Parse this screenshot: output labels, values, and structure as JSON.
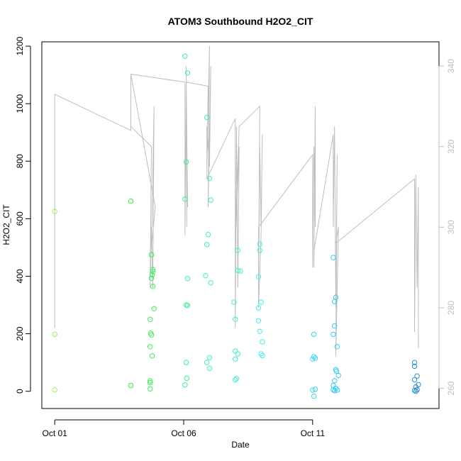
{
  "chart_data": {
    "type": "scatter",
    "title": "ATOM3 Southbound H2O2_CIT",
    "xlabel": "Date",
    "ylabel": "H2O2_CIT",
    "x_tick_labels": [
      "Oct 01",
      "Oct 06",
      "Oct 11"
    ],
    "x_tick_days": [
      1,
      6,
      11
    ],
    "xlim_days": [
      0.5,
      15.9
    ],
    "ylim": [
      -60,
      1215
    ],
    "y_ticks": [
      0,
      200,
      400,
      600,
      800,
      1000,
      1200
    ],
    "y2lim": [
      255,
      346
    ],
    "y2_ticks": [
      260,
      280,
      300,
      320,
      340
    ],
    "colors": {
      "line": "#bebebe",
      "axis_right": "#bebebe",
      "gradient": [
        "#9cf54a",
        "#32f02c",
        "#3ef0b0",
        "#3ff0f0",
        "#35c4f0",
        "#2a8ad6"
      ]
    },
    "points": [
      {
        "x": 1.0,
        "y": 625
      },
      {
        "x": 1.0,
        "y": 198
      },
      {
        "x": 1.0,
        "y": 5
      },
      {
        "x": 3.95,
        "y": 661
      },
      {
        "x": 3.95,
        "y": 20
      },
      {
        "x": 4.75,
        "y": 475
      },
      {
        "x": 4.8,
        "y": 423
      },
      {
        "x": 4.8,
        "y": 416
      },
      {
        "x": 4.78,
        "y": 405
      },
      {
        "x": 4.75,
        "y": 393
      },
      {
        "x": 4.8,
        "y": 365
      },
      {
        "x": 4.85,
        "y": 287
      },
      {
        "x": 4.7,
        "y": 250
      },
      {
        "x": 4.72,
        "y": 202
      },
      {
        "x": 4.75,
        "y": 196
      },
      {
        "x": 4.7,
        "y": 155
      },
      {
        "x": 4.78,
        "y": 123
      },
      {
        "x": 4.7,
        "y": 36
      },
      {
        "x": 4.7,
        "y": 30
      },
      {
        "x": 4.7,
        "y": 8
      },
      {
        "x": 6.05,
        "y": 1165
      },
      {
        "x": 6.15,
        "y": 1107
      },
      {
        "x": 6.1,
        "y": 797
      },
      {
        "x": 6.05,
        "y": 668
      },
      {
        "x": 6.15,
        "y": 392
      },
      {
        "x": 6.1,
        "y": 300
      },
      {
        "x": 6.15,
        "y": 298
      },
      {
        "x": 6.1,
        "y": 100
      },
      {
        "x": 6.12,
        "y": 45
      },
      {
        "x": 6.05,
        "y": 22
      },
      {
        "x": 6.9,
        "y": 952
      },
      {
        "x": 7.0,
        "y": 740
      },
      {
        "x": 7.05,
        "y": 665
      },
      {
        "x": 6.95,
        "y": 545
      },
      {
        "x": 6.9,
        "y": 510
      },
      {
        "x": 6.85,
        "y": 402
      },
      {
        "x": 7.05,
        "y": 377
      },
      {
        "x": 7.0,
        "y": 117
      },
      {
        "x": 6.9,
        "y": 100
      },
      {
        "x": 7.0,
        "y": 80
      },
      {
        "x": 8.1,
        "y": 490
      },
      {
        "x": 8.1,
        "y": 420
      },
      {
        "x": 8.2,
        "y": 418
      },
      {
        "x": 7.95,
        "y": 310
      },
      {
        "x": 8.0,
        "y": 250
      },
      {
        "x": 8.0,
        "y": 140
      },
      {
        "x": 8.1,
        "y": 130
      },
      {
        "x": 8.0,
        "y": 112
      },
      {
        "x": 8.05,
        "y": 44
      },
      {
        "x": 8.0,
        "y": 40
      },
      {
        "x": 8.95,
        "y": 512
      },
      {
        "x": 8.95,
        "y": 490
      },
      {
        "x": 8.9,
        "y": 398
      },
      {
        "x": 9.0,
        "y": 310
      },
      {
        "x": 8.9,
        "y": 290
      },
      {
        "x": 8.9,
        "y": 245
      },
      {
        "x": 8.95,
        "y": 208
      },
      {
        "x": 9.05,
        "y": 172
      },
      {
        "x": 9.0,
        "y": 130
      },
      {
        "x": 9.05,
        "y": 124
      },
      {
        "x": 11.05,
        "y": 198
      },
      {
        "x": 11.05,
        "y": 120
      },
      {
        "x": 11.1,
        "y": 115
      },
      {
        "x": 11.0,
        "y": 112
      },
      {
        "x": 11.1,
        "y": 7
      },
      {
        "x": 11.0,
        "y": 4
      },
      {
        "x": 11.05,
        "y": -17
      },
      {
        "x": 11.8,
        "y": 465
      },
      {
        "x": 11.9,
        "y": 327
      },
      {
        "x": 11.85,
        "y": 312
      },
      {
        "x": 11.85,
        "y": 227
      },
      {
        "x": 11.8,
        "y": 198
      },
      {
        "x": 11.95,
        "y": 155
      },
      {
        "x": 11.9,
        "y": 75
      },
      {
        "x": 11.92,
        "y": 70
      },
      {
        "x": 12.0,
        "y": 55
      },
      {
        "x": 11.85,
        "y": 37
      },
      {
        "x": 11.8,
        "y": 20
      },
      {
        "x": 11.9,
        "y": 10
      },
      {
        "x": 11.8,
        "y": 5
      },
      {
        "x": 11.95,
        "y": 4
      },
      {
        "x": 11.85,
        "y": 2
      },
      {
        "x": 14.95,
        "y": 100
      },
      {
        "x": 14.95,
        "y": 87
      },
      {
        "x": 15.05,
        "y": 53
      },
      {
        "x": 14.95,
        "y": 40
      },
      {
        "x": 15.1,
        "y": 23
      },
      {
        "x": 15.0,
        "y": 15
      },
      {
        "x": 15.05,
        "y": 5
      },
      {
        "x": 14.95,
        "y": 3
      },
      {
        "x": 15.0,
        "y": 0
      }
    ],
    "line_y2": [
      {
        "x": 1.0,
        "y": 333
      },
      {
        "x": 1.0,
        "y": 275
      },
      {
        "x": 1.0,
        "y": 333
      },
      {
        "x": 3.95,
        "y": 324
      },
      {
        "x": 3.95,
        "y": 338
      },
      {
        "x": 3.95,
        "y": 325
      },
      {
        "x": 4.75,
        "y": 320
      },
      {
        "x": 4.7,
        "y": 285
      },
      {
        "x": 4.75,
        "y": 300
      },
      {
        "x": 4.8,
        "y": 285
      },
      {
        "x": 4.85,
        "y": 330
      },
      {
        "x": 4.75,
        "y": 295
      },
      {
        "x": 4.9,
        "y": 305
      },
      {
        "x": 3.95,
        "y": 338
      },
      {
        "x": 6.05,
        "y": 336
      },
      {
        "x": 6.05,
        "y": 298
      },
      {
        "x": 6.1,
        "y": 336
      },
      {
        "x": 6.15,
        "y": 305
      },
      {
        "x": 6.1,
        "y": 325
      },
      {
        "x": 6.12,
        "y": 300
      },
      {
        "x": 6.1,
        "y": 340
      },
      {
        "x": 6.1,
        "y": 336
      },
      {
        "x": 6.95,
        "y": 335
      },
      {
        "x": 6.9,
        "y": 315
      },
      {
        "x": 7.0,
        "y": 345
      },
      {
        "x": 6.95,
        "y": 305
      },
      {
        "x": 7.05,
        "y": 340
      },
      {
        "x": 7.0,
        "y": 315
      },
      {
        "x": 6.9,
        "y": 325
      },
      {
        "x": 6.9,
        "y": 312
      },
      {
        "x": 8.0,
        "y": 327
      },
      {
        "x": 8.0,
        "y": 275
      },
      {
        "x": 8.05,
        "y": 325
      },
      {
        "x": 8.1,
        "y": 285
      },
      {
        "x": 8.15,
        "y": 320
      },
      {
        "x": 8.0,
        "y": 295
      },
      {
        "x": 8.15,
        "y": 325
      },
      {
        "x": 8.95,
        "y": 330
      },
      {
        "x": 8.9,
        "y": 285
      },
      {
        "x": 8.95,
        "y": 320
      },
      {
        "x": 9.0,
        "y": 300
      },
      {
        "x": 9.05,
        "y": 323
      },
      {
        "x": 9.0,
        "y": 298
      },
      {
        "x": 8.9,
        "y": 280
      },
      {
        "x": 8.9,
        "y": 300
      },
      {
        "x": 11.0,
        "y": 318
      },
      {
        "x": 11.0,
        "y": 290
      },
      {
        "x": 11.05,
        "y": 320
      },
      {
        "x": 11.1,
        "y": 300
      },
      {
        "x": 11.1,
        "y": 330
      },
      {
        "x": 11.05,
        "y": 290
      },
      {
        "x": 11.05,
        "y": 294
      },
      {
        "x": 11.8,
        "y": 323
      },
      {
        "x": 11.8,
        "y": 300
      },
      {
        "x": 11.85,
        "y": 325
      },
      {
        "x": 11.9,
        "y": 280
      },
      {
        "x": 11.95,
        "y": 318
      },
      {
        "x": 11.9,
        "y": 268
      },
      {
        "x": 12.0,
        "y": 300
      },
      {
        "x": 11.9,
        "y": 296
      },
      {
        "x": 14.95,
        "y": 312
      },
      {
        "x": 14.95,
        "y": 274
      },
      {
        "x": 15.0,
        "y": 313
      },
      {
        "x": 15.05,
        "y": 285
      },
      {
        "x": 15.1,
        "y": 310
      },
      {
        "x": 15.1,
        "y": 270
      }
    ],
    "grid": false,
    "legend": "none"
  }
}
